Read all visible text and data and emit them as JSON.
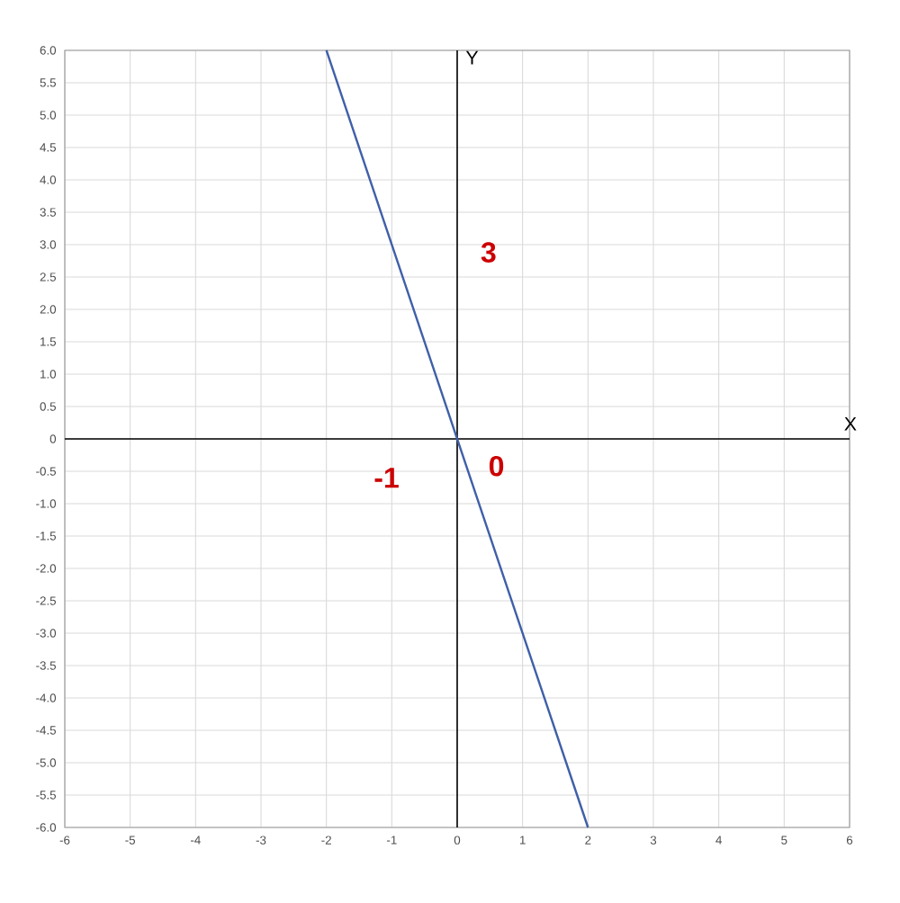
{
  "chart_data": {
    "type": "line",
    "xlabel": "X",
    "ylabel": "Y",
    "x": [
      -2,
      2
    ],
    "series": [
      {
        "color": "#3f5fa8",
        "values": [
          6,
          -6
        ]
      }
    ],
    "xlim": [
      -6,
      6
    ],
    "ylim": [
      -6,
      6
    ],
    "xticks": [
      -6,
      -5,
      -4,
      -3,
      -2,
      -1,
      0,
      1,
      2,
      3,
      4,
      5,
      6
    ],
    "yticks": [
      {
        "value": -6,
        "label": "-6.0"
      },
      {
        "value": -5.5,
        "label": "-5.5"
      },
      {
        "value": -5,
        "label": "-5.0"
      },
      {
        "value": -4.5,
        "label": "-4.5"
      },
      {
        "value": -4,
        "label": "-4.0"
      },
      {
        "value": -3.5,
        "label": "-3.5"
      },
      {
        "value": -3,
        "label": "-3.0"
      },
      {
        "value": -2.5,
        "label": "-2.5"
      },
      {
        "value": -2,
        "label": "-2.0"
      },
      {
        "value": -1.5,
        "label": "-1.5"
      },
      {
        "value": -1,
        "label": "-1.0"
      },
      {
        "value": -0.5,
        "label": "-0.5"
      },
      0,
      {
        "value": 0.5,
        "label": "0.5"
      },
      {
        "value": 1,
        "label": "1.0"
      },
      {
        "value": 1.5,
        "label": "1.5"
      },
      {
        "value": 2,
        "label": "2.0"
      },
      {
        "value": 2.5,
        "label": "2.5"
      },
      {
        "value": 3,
        "label": "3.0"
      },
      {
        "value": 3.5,
        "label": "3.5"
      },
      {
        "value": 4,
        "label": "4.0"
      },
      {
        "value": 4.5,
        "label": "4.5"
      },
      {
        "value": 5,
        "label": "5.0"
      },
      {
        "value": 5.5,
        "label": "5.5"
      },
      {
        "value": 6,
        "label": "6.0"
      }
    ],
    "grid": true,
    "marker": "none",
    "annotations": [
      "3",
      "-1",
      "0"
    ]
  }
}
